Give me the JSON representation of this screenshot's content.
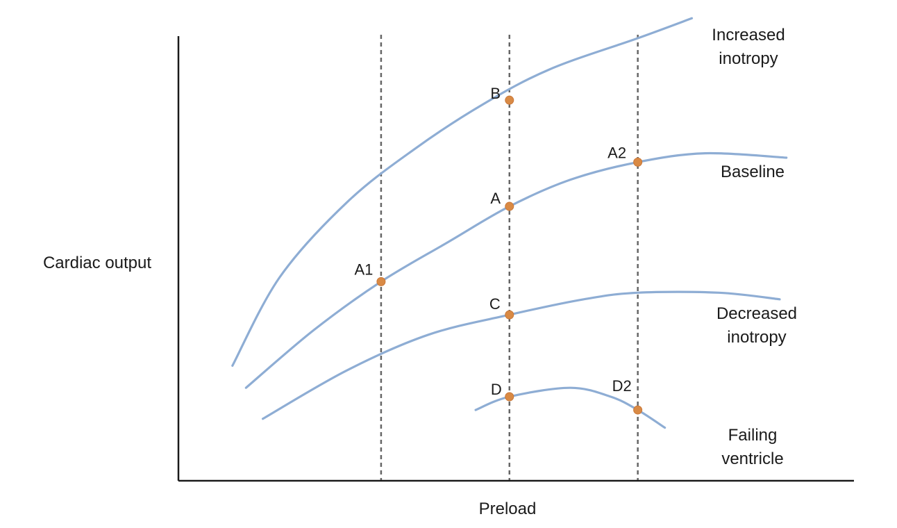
{
  "chart_data": {
    "type": "line",
    "xlabel": "Preload",
    "ylabel": "Cardiac output",
    "xlim": [
      0,
      100
    ],
    "ylim": [
      0,
      100
    ],
    "grid": false,
    "vlines": [
      30,
      49,
      68
    ],
    "series": [
      {
        "name": "Increased\ninotropy",
        "color": "#8eadd4",
        "points": [
          [
            8,
            26
          ],
          [
            15,
            46
          ],
          [
            25,
            63
          ],
          [
            35,
            75
          ],
          [
            45,
            85
          ],
          [
            55,
            93
          ],
          [
            68,
            100
          ],
          [
            76,
            104.5
          ]
        ]
      },
      {
        "name": "Baseline",
        "color": "#8eadd4",
        "points": [
          [
            10,
            21
          ],
          [
            20,
            34
          ],
          [
            30,
            45
          ],
          [
            40,
            54
          ],
          [
            49,
            62
          ],
          [
            58,
            68
          ],
          [
            68,
            72
          ],
          [
            78,
            74
          ],
          [
            90,
            73
          ]
        ]
      },
      {
        "name": "Decreased\ninotropy",
        "color": "#8eadd4",
        "points": [
          [
            12.5,
            14
          ],
          [
            25,
            25
          ],
          [
            37,
            33
          ],
          [
            49,
            37.5
          ],
          [
            60,
            41
          ],
          [
            68,
            42.5
          ],
          [
            80,
            42.5
          ],
          [
            89,
            41
          ]
        ]
      },
      {
        "name": "Failing\nventricle",
        "color": "#8eadd4",
        "points": [
          [
            44,
            16
          ],
          [
            49,
            19
          ],
          [
            58,
            21
          ],
          [
            64,
            19
          ],
          [
            68,
            16
          ],
          [
            72,
            12
          ]
        ]
      }
    ],
    "markers": [
      {
        "label": "B",
        "x": 49,
        "y": 86
      },
      {
        "label": "A",
        "x": 49,
        "y": 62
      },
      {
        "label": "A1",
        "x": 30,
        "y": 45
      },
      {
        "label": "A2",
        "x": 68,
        "y": 72
      },
      {
        "label": "C",
        "x": 49,
        "y": 37.5
      },
      {
        "label": "D",
        "x": 49,
        "y": 19
      },
      {
        "label": "D2",
        "x": 68,
        "y": 16
      }
    ]
  }
}
